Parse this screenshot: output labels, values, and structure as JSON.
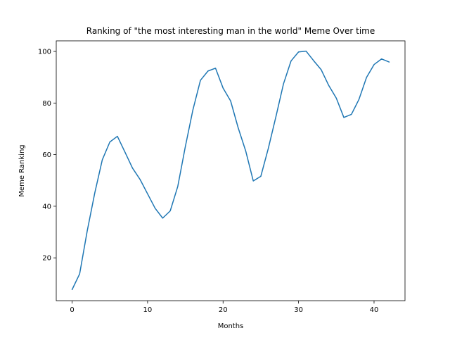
{
  "chart_data": {
    "type": "line",
    "title": "Ranking of \"the most interesting man in the world\" Meme Over time",
    "xlabel": "Months",
    "ylabel": "Meme Ranking",
    "xlim": [
      -2.1,
      44.1
    ],
    "ylim": [
      3.4,
      104.1
    ],
    "xticks": [
      0,
      10,
      20,
      30,
      40
    ],
    "yticks": [
      20,
      40,
      60,
      80,
      100
    ],
    "grid": false,
    "line_color": "#1f77b4",
    "series": [
      {
        "x": [
          0,
          1,
          2,
          3,
          4,
          5,
          6,
          7,
          8,
          9,
          10,
          11,
          12,
          13,
          14,
          15,
          16,
          17,
          18,
          19,
          20,
          21,
          22,
          23,
          24,
          25,
          26,
          27,
          28,
          29,
          30,
          31,
          32,
          33,
          34,
          35,
          36,
          37,
          38,
          39,
          40,
          41,
          42
        ],
        "values": [
          7.7,
          13.8,
          30.4,
          45.1,
          58.0,
          64.9,
          67.1,
          61.0,
          54.8,
          50.4,
          44.8,
          39.2,
          35.4,
          38.2,
          47.7,
          63.1,
          77.3,
          88.8,
          92.4,
          93.5,
          85.8,
          80.8,
          70.4,
          61.4,
          49.8,
          51.6,
          62.5,
          74.7,
          87.4,
          96.3,
          99.8,
          100.1,
          96.4,
          92.9,
          86.8,
          81.9,
          74.4,
          75.6,
          81.4,
          89.9,
          94.9,
          97.1,
          95.9
        ]
      }
    ]
  }
}
